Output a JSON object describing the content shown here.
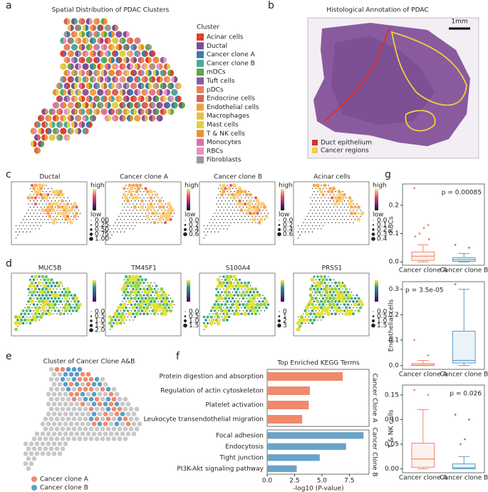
{
  "panels": {
    "a": {
      "letter": "a",
      "title": "Spatial Distribution of PDAC Clusters",
      "legend_title": "Cluster",
      "clusters": [
        {
          "name": "Acinar cells",
          "color": "#e0402a"
        },
        {
          "name": "Ductal",
          "color": "#7b4f8e"
        },
        {
          "name": "Cancer clone A",
          "color": "#3a7ea6"
        },
        {
          "name": "Cancer clone B",
          "color": "#4fa89a"
        },
        {
          "name": "mDCs",
          "color": "#5aa84a"
        },
        {
          "name": "Tuft cells",
          "color": "#8a5aa0"
        },
        {
          "name": "pDCs",
          "color": "#e88060"
        },
        {
          "name": "Endocrine cells",
          "color": "#d9605a"
        },
        {
          "name": "Endothelial cells",
          "color": "#f0a040"
        },
        {
          "name": "Macrophages",
          "color": "#e8c040"
        },
        {
          "name": "Mast cells",
          "color": "#e0d040"
        },
        {
          "name": "T & NK cells",
          "color": "#e89030"
        },
        {
          "name": "Monocytes",
          "color": "#e070a0"
        },
        {
          "name": "RBCs",
          "color": "#e890c0"
        },
        {
          "name": "Fibroblasts",
          "color": "#999999"
        }
      ]
    },
    "b": {
      "letter": "b",
      "title": "Histological Annotation of PDAC",
      "scale_bar": "1mm",
      "legend": [
        {
          "name": "Duct epithelium",
          "color": "#d93030"
        },
        {
          "name": "Cancer regions",
          "color": "#f0d040"
        }
      ]
    },
    "c": {
      "letter": "c",
      "colorbar": [
        "high",
        "low"
      ],
      "maps": [
        {
          "title": "Ductal",
          "sizes": [
            {
              "value": 0,
              "label": "0.00"
            },
            0.25,
            {
              "value": 0.5,
              "label": "0.50"
            },
            0.75,
            {
              "value": 1,
              "label": "1.00"
            }
          ]
        },
        {
          "title": "Cancer clone A",
          "sizes": [
            {
              "value": 0,
              "label": "0.0"
            },
            0.2,
            0.4,
            0.6
          ]
        },
        {
          "title": "Cancer clone B",
          "sizes": [
            {
              "value": 0,
              "label": "0.0"
            },
            0.2,
            0.4,
            0.6
          ]
        },
        {
          "title": "Acinar cells",
          "sizes": [
            {
              "value": 0,
              "label": "0.0"
            },
            0.1,
            0.2,
            0.3,
            0.4
          ]
        }
      ]
    },
    "d": {
      "letter": "d",
      "maps": [
        {
          "title": "MUC5B",
          "sizes": [
            {
              "value": 0,
              "label": "0.0"
            },
            0.5,
            {
              "value": 1,
              "label": "1.0"
            },
            1.5,
            {
              "value": 2,
              "label": "2.0"
            }
          ]
        },
        {
          "title": "TM4SF1",
          "sizes": [
            {
              "value": 0,
              "label": "0.0"
            },
            0.5,
            {
              "value": 1,
              "label": "1.0"
            },
            1.5
          ]
        },
        {
          "title": "S100A4",
          "sizes": [
            0,
            1,
            2,
            3
          ]
        },
        {
          "title": "PRSS1",
          "sizes": [
            {
              "value": 0,
              "label": "0.0"
            },
            0.5,
            {
              "value": 1,
              "label": "1.0"
            },
            1.5
          ]
        }
      ]
    },
    "e": {
      "letter": "e",
      "title": "Cluster of Cancer Clone A&B",
      "legend": [
        {
          "name": "Cancer clone A",
          "color": "#f08a6a"
        },
        {
          "name": "Cancer clone B",
          "color": "#5a9ec8"
        }
      ]
    },
    "f": {
      "letter": "f"
    },
    "g": {
      "letter": "g"
    }
  },
  "chart_data": [
    {
      "type": "bar",
      "title": "Top Enriched KEGG Terms",
      "xlabel": "-log10 (P-value)",
      "xlim": [
        0,
        9.3
      ],
      "xticks": [
        {
          "value": 0,
          "label": "0.0"
        },
        2.5,
        {
          "value": 5,
          "label": "5.0"
        },
        7.5
      ],
      "series": [
        {
          "name": "Cancer Clone A",
          "color": "#ef8a6c",
          "categories": [
            "Protein digestion and absorption",
            "Regulation of actin cytoskeleton",
            "Platelet activation",
            "Leukocyte transendothelial migration"
          ],
          "values": [
            6.9,
            3.9,
            3.8,
            3.2
          ]
        },
        {
          "name": "Cancer Clone B",
          "color": "#6aa3c8",
          "categories": [
            "Focal adhesion",
            "Endocytosis",
            "Tight junction",
            "PI3K-Akt signaling pathway"
          ],
          "values": [
            8.8,
            7.2,
            4.8,
            2.7
          ]
        }
      ]
    },
    {
      "type": "box",
      "ylabel": "RBCs",
      "annotation": "p = 0.00085",
      "categories": [
        "Cancer clone A",
        "Cancer clone B"
      ],
      "colors": [
        "#f08a6a",
        "#5a9ec8"
      ],
      "ylim": [
        -0.012,
        0.275
      ],
      "yticks": [
        {
          "value": 0,
          "label": "0.0"
        },
        0.1,
        0.2
      ],
      "boxes": [
        {
          "min": 0,
          "q1": 0.005,
          "median": 0.02,
          "q3": 0.035,
          "max": 0.06,
          "outliers": [
            0.26,
            0.13,
            0.12,
            0.1,
            0.09,
            0.08
          ]
        },
        {
          "min": 0,
          "q1": 0.002,
          "median": 0.008,
          "q3": 0.015,
          "max": 0.03,
          "outliers": [
            0.06,
            0.05
          ]
        }
      ]
    },
    {
      "type": "box",
      "ylabel": "Endothelial cells",
      "annotation": "p = 3.5e-05",
      "categories": [
        "Cancer clone A",
        "Cancer clone B"
      ],
      "colors": [
        "#f08a6a",
        "#5a9ec8"
      ],
      "ylim": [
        -0.015,
        0.33
      ],
      "yticks": [
        {
          "value": 0,
          "label": "0.0"
        },
        0.1,
        0.2,
        0.3
      ],
      "boxes": [
        {
          "min": 0,
          "q1": 0,
          "median": 0.002,
          "q3": 0.008,
          "max": 0.02,
          "outliers": [
            0.1,
            0.04
          ]
        },
        {
          "min": 0,
          "q1": 0.01,
          "median": 0.02,
          "q3": 0.135,
          "max": 0.3,
          "outliers": [
            0.32
          ]
        }
      ]
    },
    {
      "type": "box",
      "ylabel": "T & NK cells",
      "annotation": "p = 0.026",
      "categories": [
        "Cancer clone A",
        "Cancer clone B"
      ],
      "colors": [
        "#f08a6a",
        "#5a9ec8"
      ],
      "ylim": [
        -0.008,
        0.17
      ],
      "yticks": [
        {
          "value": 0,
          "label": "0.00"
        },
        0.05,
        {
          "value": 0.1,
          "label": "0.10"
        },
        {
          "value": 0.15,
          "label": "0.15"
        }
      ],
      "boxes": [
        {
          "min": 0,
          "q1": 0.003,
          "median": 0.02,
          "q3": 0.052,
          "max": 0.12,
          "outliers": [
            0.16,
            0.15
          ]
        },
        {
          "min": 0,
          "q1": 0,
          "median": 0.002,
          "q3": 0.01,
          "max": 0.025,
          "outliers": [
            0.11,
            0.1,
            0.06,
            0.05
          ]
        }
      ]
    }
  ]
}
